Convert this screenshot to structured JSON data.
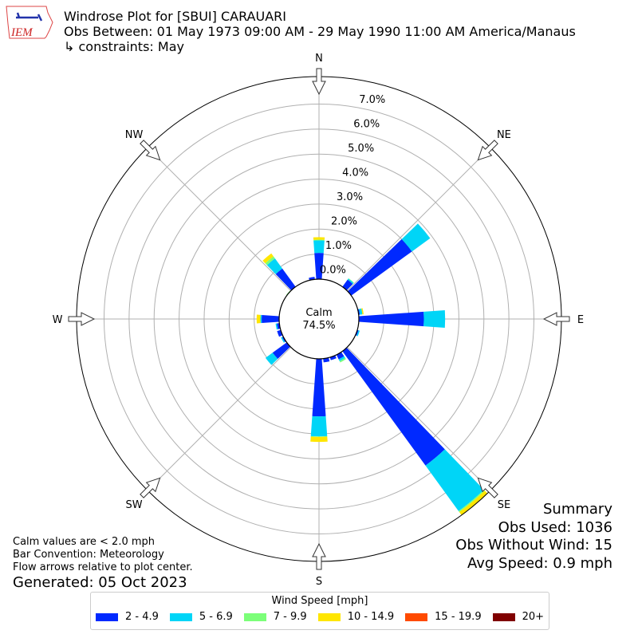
{
  "header": {
    "logo_text": "IEM",
    "title": "Windrose Plot for [SBUI] CARAUARI",
    "obs_between": "Obs Between: 01 May 1973 09:00 AM - 29 May 1990 11:00 AM America/Manaus",
    "constraints": "↳ constraints: May"
  },
  "notes": {
    "calm": "Calm values are < 2.0 mph",
    "convention": "Bar Convention: Meteorology",
    "flow": "Flow arrows relative to plot center.",
    "generated": "Generated: 05 Oct 2023"
  },
  "summary": {
    "title": "Summary",
    "obs_used": "Obs Used: 1036",
    "obs_without_wind": "Obs Without Wind: 15",
    "avg_speed": "Avg Speed: 0.9 mph"
  },
  "chart_data": {
    "type": "windrose",
    "calm_label": "Calm",
    "calm_value": "74.5%",
    "radial_ticks": [
      "0.0%",
      "1.0%",
      "2.0%",
      "3.0%",
      "4.0%",
      "5.0%",
      "6.0%",
      "7.0%"
    ],
    "radial_tick_values": [
      0,
      1,
      2,
      3,
      4,
      5,
      6,
      7
    ],
    "rlim": [
      0,
      8.1
    ],
    "grid": true,
    "compass_labels": [
      "N",
      "NE",
      "E",
      "SE",
      "S",
      "SW",
      "W",
      "NW"
    ],
    "legend_title": "Wind Speed [mph]",
    "legend_placement": "bottom",
    "bins": [
      {
        "label": "2 - 4.9",
        "color": "#0029ff"
      },
      {
        "label": "5 - 6.9",
        "color": "#00d5f7"
      },
      {
        "label": "7 - 9.9",
        "color": "#7cff79"
      },
      {
        "label": "10 - 14.9",
        "color": "#ffe600"
      },
      {
        "label": "15 - 19.9",
        "color": "#ff4a00"
      },
      {
        "label": "20+",
        "color": "#800000"
      }
    ],
    "directions": [
      {
        "dir": 0,
        "values": [
          1.05,
          0.5,
          0.03,
          0.1,
          0,
          0
        ]
      },
      {
        "dir": 40,
        "values": [
          0.35,
          0.05,
          0.02,
          0,
          0,
          0
        ]
      },
      {
        "dir": 50,
        "values": [
          3.0,
          0.9,
          0,
          0,
          0,
          0
        ]
      },
      {
        "dir": 80,
        "values": [
          0.05,
          0.1,
          0,
          0.05,
          0,
          0
        ]
      },
      {
        "dir": 90,
        "values": [
          2.6,
          0.85,
          0,
          0,
          0,
          0
        ]
      },
      {
        "dir": 110,
        "values": [
          0.05,
          0.05,
          0,
          0,
          0,
          0
        ]
      },
      {
        "dir": 140,
        "values": [
          5.65,
          2.25,
          0.05,
          0.2,
          0.1,
          0
        ]
      },
      {
        "dir": 150,
        "values": [
          0.2,
          0.08,
          0.06,
          0,
          0,
          0
        ]
      },
      {
        "dir": 160,
        "values": [
          0.12,
          0,
          0,
          0,
          0,
          0
        ]
      },
      {
        "dir": 170,
        "values": [
          0.15,
          0,
          0,
          0,
          0,
          0
        ]
      },
      {
        "dir": 180,
        "values": [
          2.3,
          0.8,
          0.02,
          0.2,
          0,
          0
        ]
      },
      {
        "dir": 230,
        "values": [
          0.7,
          0.35,
          0,
          0,
          0,
          0
        ]
      },
      {
        "dir": 240,
        "values": [
          0.05,
          0.05,
          0,
          0,
          0,
          0
        ]
      },
      {
        "dir": 250,
        "values": [
          0.15,
          0,
          0,
          0,
          0,
          0
        ]
      },
      {
        "dir": 260,
        "values": [
          0.1,
          0.05,
          0,
          0,
          0,
          0
        ]
      },
      {
        "dir": 270,
        "values": [
          0.7,
          0.05,
          0,
          0.15,
          0,
          0
        ]
      },
      {
        "dir": 310,
        "values": [
          0,
          0,
          0.03,
          0,
          0,
          0
        ]
      },
      {
        "dir": 320,
        "values": [
          0.9,
          0.5,
          0.1,
          0.15,
          0,
          0
        ]
      },
      {
        "dir": 350,
        "values": [
          0.1,
          0,
          0,
          0,
          0,
          0
        ]
      }
    ]
  }
}
